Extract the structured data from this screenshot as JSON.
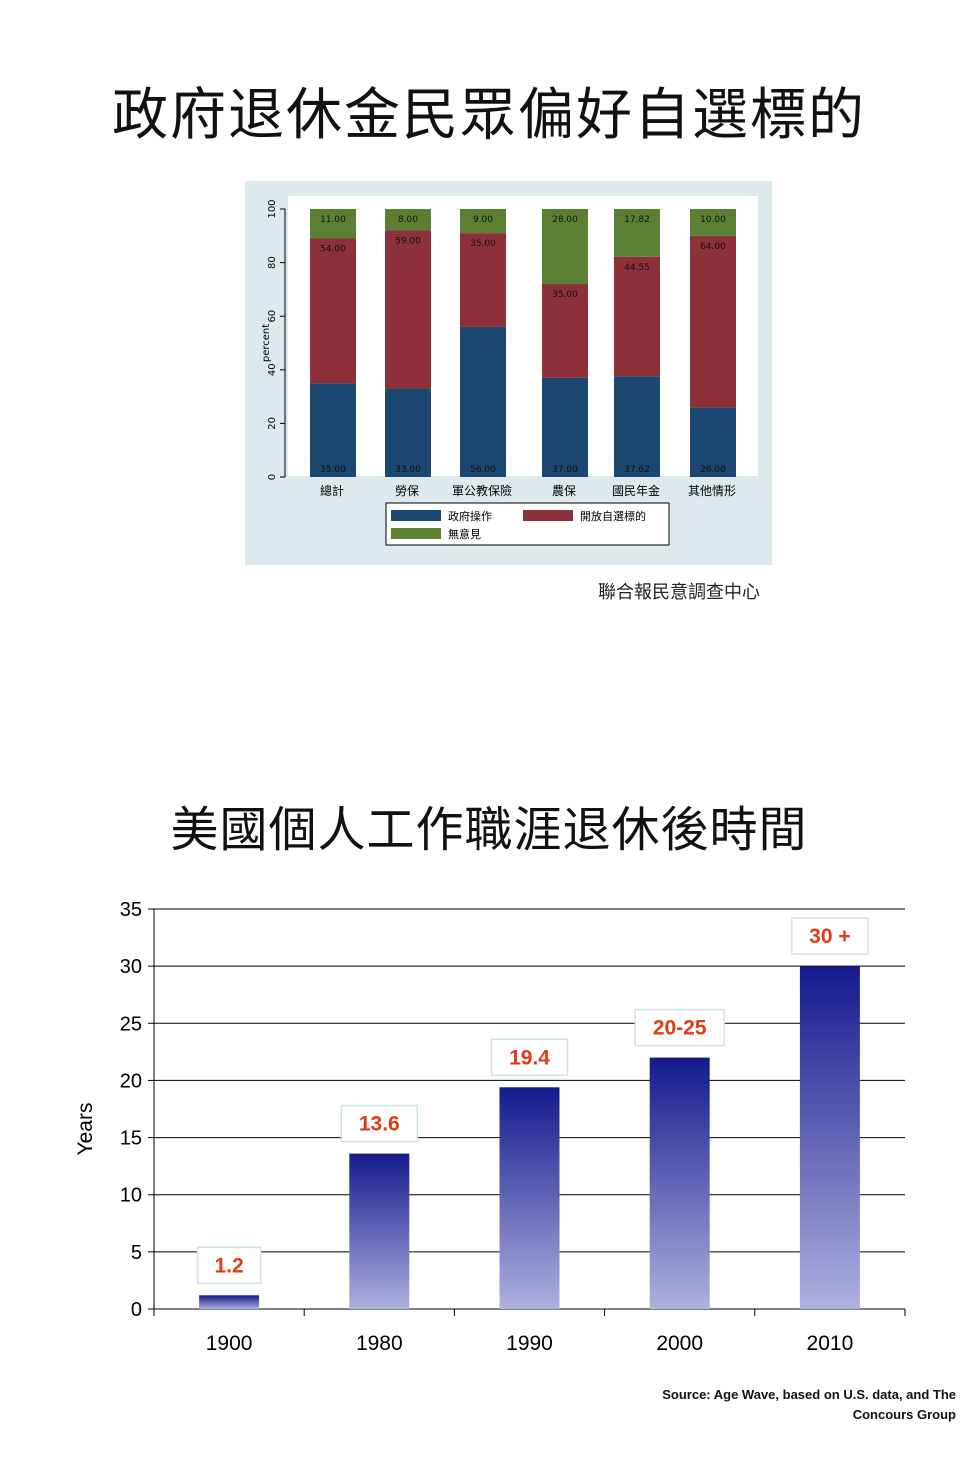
{
  "title1": "政府退休金民眾偏好自選標的",
  "title2": "美國個人工作職涯退休後時間",
  "source1": "聯合報民意調查中心",
  "source2_line1": "Source: Age Wave, based on U.S. data, and The",
  "source2_line2": "Concours Group",
  "colors": {
    "gov": "#1b4670",
    "open": "#8e3039",
    "none": "#5b7f33",
    "panel": "#dde9ec",
    "bar_top": "#141a8c",
    "bar_bottom": "#aeb0de",
    "label_red": "#e03c14"
  },
  "chart_data": [
    {
      "type": "bar",
      "stacked": true,
      "ylabel": "percent",
      "ylim": [
        0,
        100
      ],
      "yticks": [
        0,
        20,
        40,
        60,
        80,
        100
      ],
      "categories": [
        "總計",
        "勞保",
        "軍公教保險",
        "農保",
        "國民年金",
        "其他情形"
      ],
      "series": [
        {
          "name": "政府操作",
          "values": [
            35.0,
            33.0,
            56.0,
            37.0,
            37.62,
            26.0
          ],
          "labels": [
            "35.00",
            "33.00",
            "56.00",
            "37.00",
            "37.62",
            "26.00"
          ]
        },
        {
          "name": "開放自選標的",
          "values": [
            54.0,
            59.0,
            35.0,
            35.0,
            44.55,
            64.0
          ],
          "labels": [
            "54.00",
            "59.00",
            "35.00",
            "35.00",
            "44.55",
            "64.00"
          ]
        },
        {
          "name": "無意見",
          "values": [
            11.0,
            8.0,
            9.0,
            28.0,
            17.82,
            10.0
          ],
          "labels": [
            "11.00",
            "8.00",
            "9.00",
            "28.00",
            "17.82",
            "10.00"
          ]
        }
      ],
      "legend": "bottom"
    },
    {
      "type": "bar",
      "ylabel": "Years",
      "ylim": [
        0,
        35
      ],
      "yticks": [
        0,
        5,
        10,
        15,
        20,
        25,
        30,
        35
      ],
      "grid": true,
      "categories": [
        "1900",
        "1980",
        "1990",
        "2000",
        "2010"
      ],
      "values": [
        1.2,
        13.6,
        19.4,
        22,
        30
      ],
      "labels": [
        "1.2",
        "13.6",
        "19.4",
        "20-25",
        "30 +"
      ]
    }
  ]
}
